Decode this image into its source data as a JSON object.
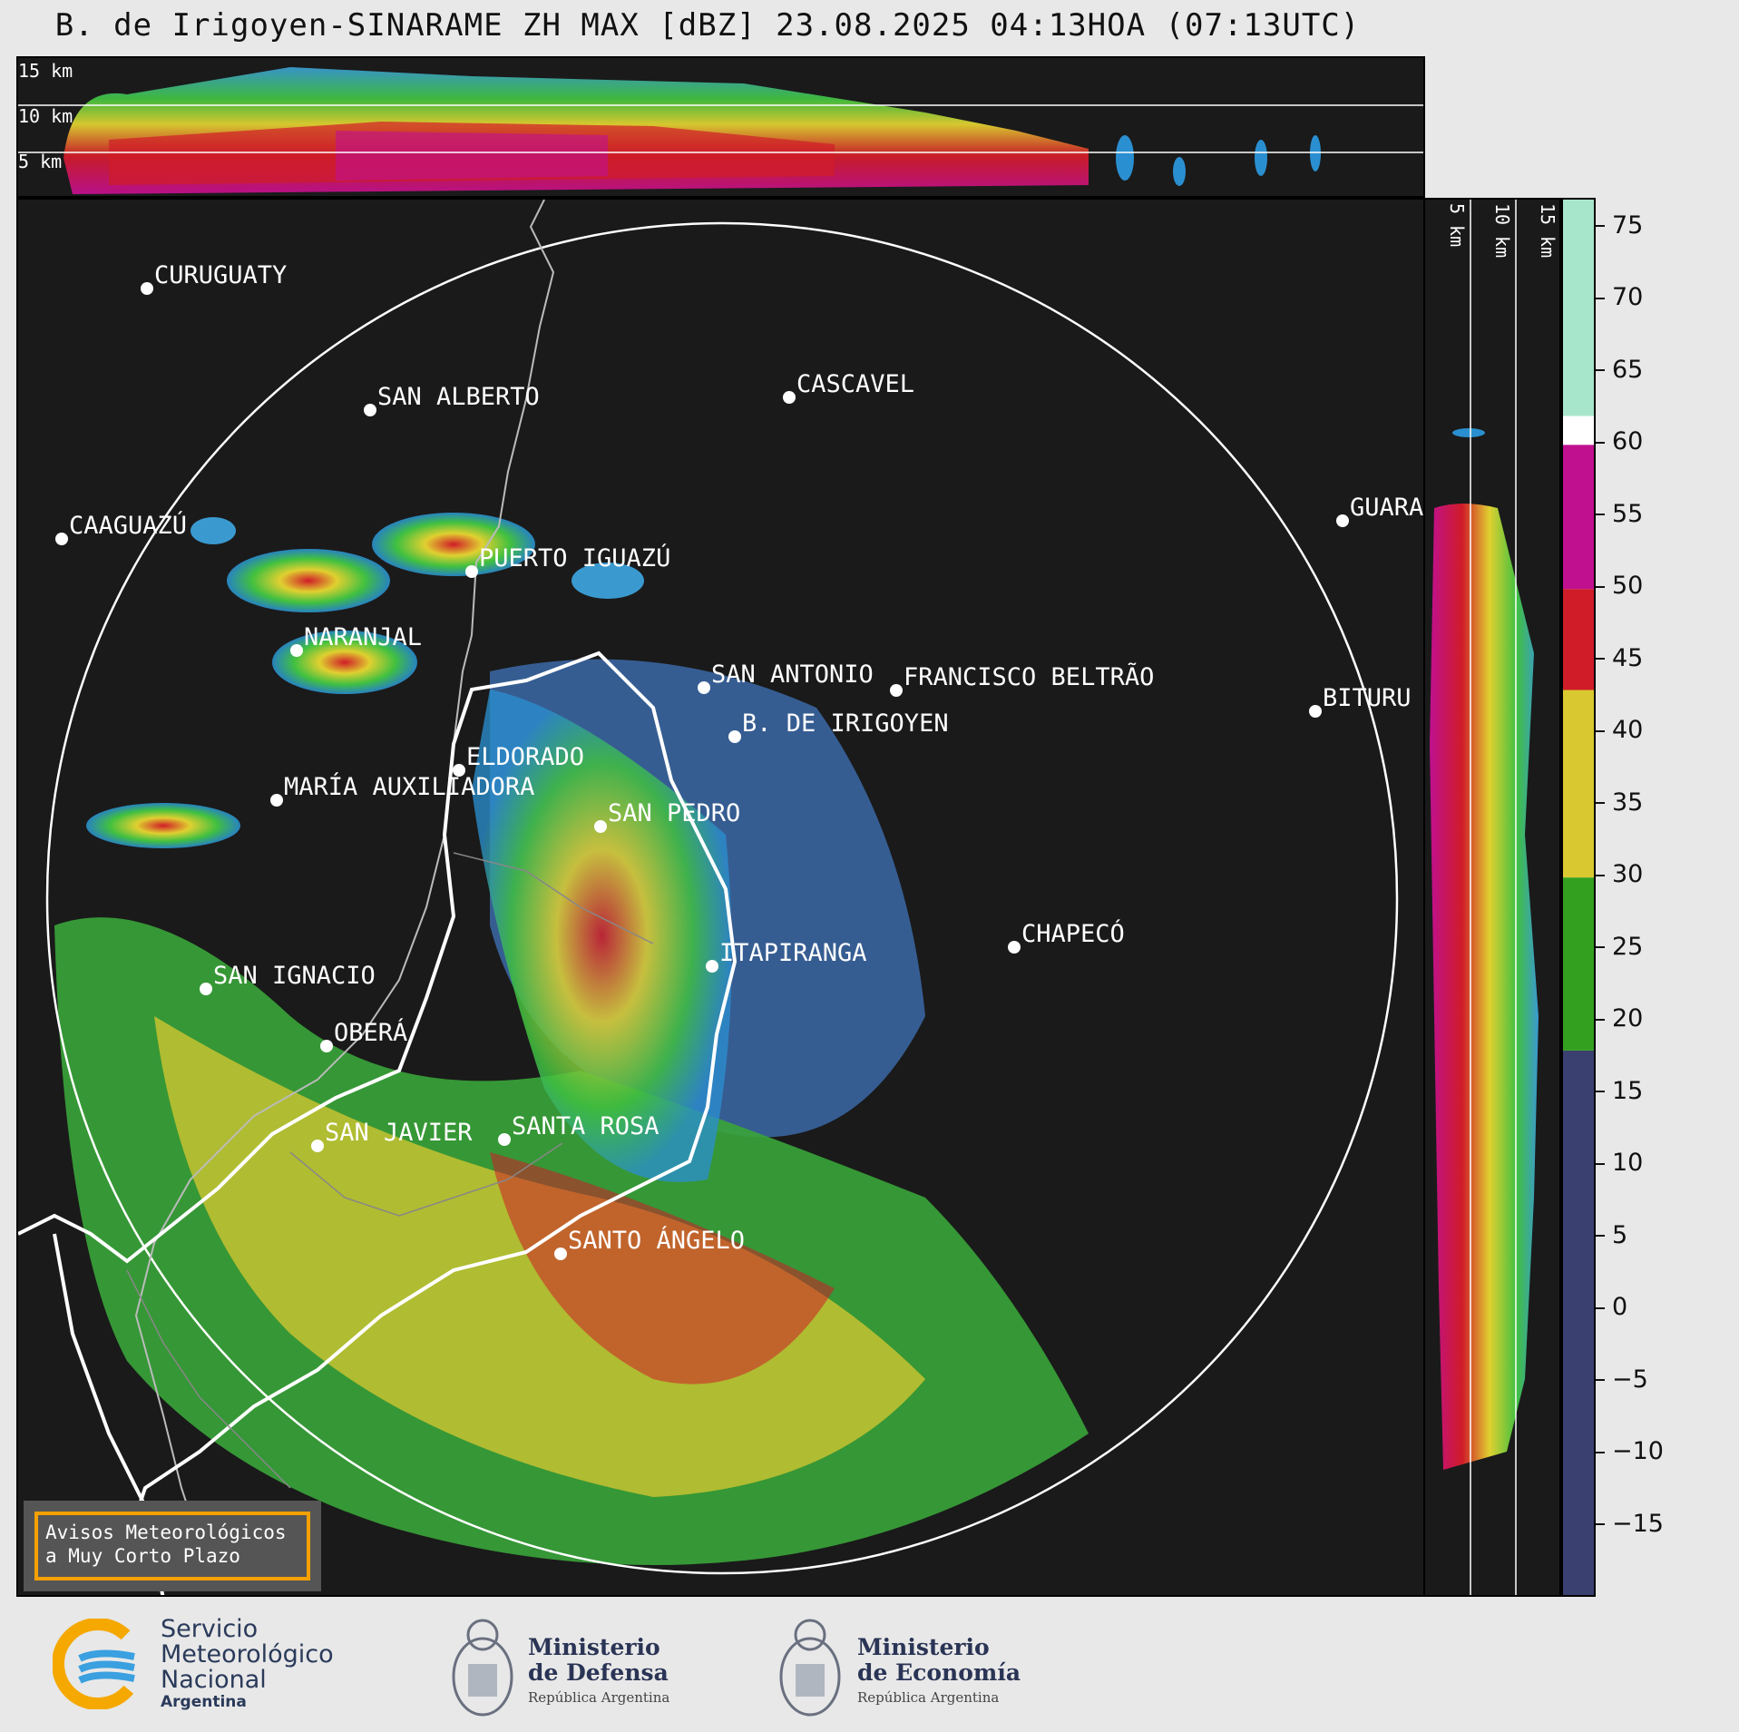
{
  "title": "B. de Irigoyen-SINARAME ZH MAX [dBZ] 23.08.2025 04:13HOA (07:13UTC)",
  "top_section": {
    "labels": [
      "15 km",
      "10 km",
      "5 km"
    ]
  },
  "side_section": {
    "labels": [
      "5 km",
      "10 km",
      "15 km"
    ]
  },
  "colorbar": {
    "ticks": [
      "75",
      "70",
      "65",
      "60",
      "55",
      "50",
      "45",
      "40",
      "35",
      "30",
      "25",
      "20",
      "15",
      "10",
      "5",
      "0",
      "−5",
      "−10",
      "−15"
    ],
    "stops": [
      {
        "from": -20,
        "to": 18,
        "color": "#3a4070"
      },
      {
        "from": 18,
        "to": 30,
        "color": "#34a020"
      },
      {
        "from": 30,
        "to": 43,
        "color": "#d9c830"
      },
      {
        "from": 43,
        "to": 50,
        "color": "#d01c28"
      },
      {
        "from": 50,
        "to": 60,
        "color": "#c0108f"
      },
      {
        "from": 60,
        "to": 62,
        "color": "#ffffff"
      },
      {
        "from": 62,
        "to": 77,
        "color": "#a8e6cc"
      }
    ]
  },
  "cities": [
    {
      "name": "CURUGUATY"
    },
    {
      "name": "SAN ALBERTO"
    },
    {
      "name": "CASCAVEL"
    },
    {
      "name": "CAAGUAZÚ"
    },
    {
      "name": "GUARA"
    },
    {
      "name": "PUERTO IGUAZÚ"
    },
    {
      "name": "NARANJAL"
    },
    {
      "name": "SAN ANTONIO"
    },
    {
      "name": "FRANCISCO BELTRÃO"
    },
    {
      "name": "BITURU"
    },
    {
      "name": "B. DE IRIGOYEN"
    },
    {
      "name": "ELDORADO"
    },
    {
      "name": "MARÍA AUXILIADORA"
    },
    {
      "name": "SAN PEDRO"
    },
    {
      "name": "CHAPECÓ"
    },
    {
      "name": "ITAPIRANGA"
    },
    {
      "name": "SAN IGNACIO"
    },
    {
      "name": "OBERÁ"
    },
    {
      "name": "SAN JAVIER"
    },
    {
      "name": "SANTA ROSA"
    },
    {
      "name": "SANTO ÁNGELO"
    }
  ],
  "warning_box": {
    "line1": "Avisos Meteorológicos",
    "line2": "a Muy Corto Plazo",
    "border_color": "#f5a000"
  },
  "footer": {
    "smn": {
      "line1": "Servicio",
      "line2": "Meteorológico",
      "line3": "Nacional",
      "line4": "Argentina"
    },
    "defensa": {
      "line1": "Ministerio",
      "line2": "de Defensa",
      "sub": "República Argentina"
    },
    "economia": {
      "line1": "Ministerio",
      "line2": "de Economía",
      "sub": "República Argentina"
    }
  }
}
